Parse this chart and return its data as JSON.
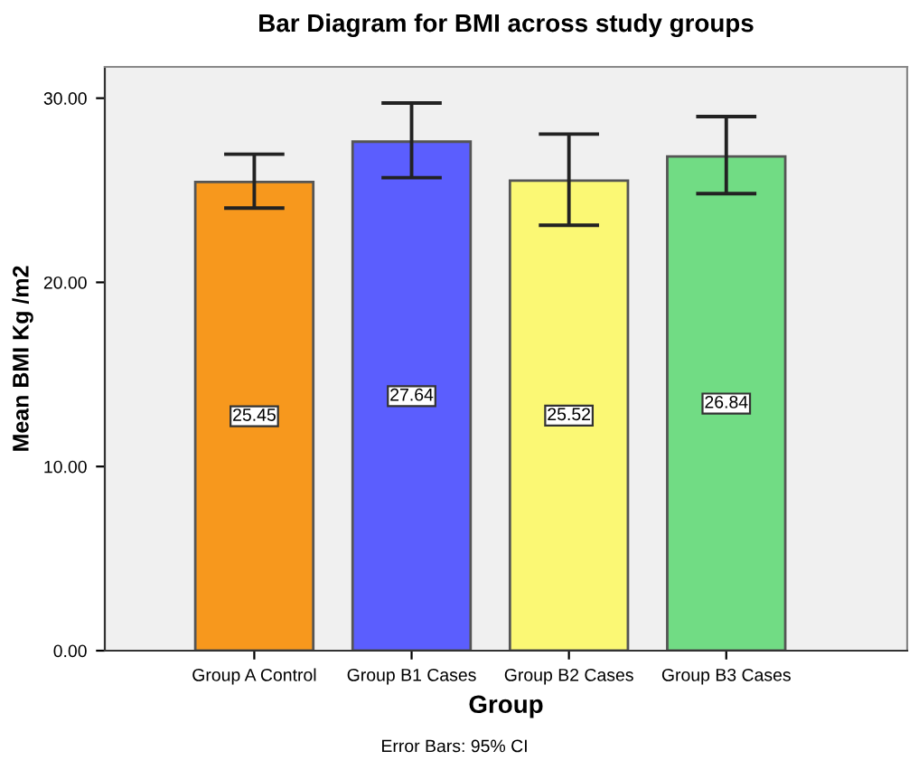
{
  "chart_data": {
    "type": "bar",
    "title": "Bar Diagram for BMI across study groups",
    "xlabel": "Group",
    "ylabel": "Mean BMI Kg /m2",
    "categories": [
      "Group A Control",
      "Group B1 Cases",
      "Group B2 Cases",
      "Group B3 Cases"
    ],
    "values": [
      25.45,
      27.64,
      25.52,
      26.84
    ],
    "colors": [
      "#f7981d",
      "#5b5efe",
      "#fbf874",
      "#71dc84"
    ],
    "errors": [
      [
        24.03,
        26.96
      ],
      [
        25.68,
        29.74
      ],
      [
        23.1,
        28.05
      ],
      [
        24.82,
        29.0
      ]
    ],
    "data_labels": true,
    "ylim": [
      0,
      31.7
    ],
    "yticks": [
      {
        "value": 0,
        "label": "0.00"
      },
      {
        "value": 10,
        "label": "10.00"
      },
      {
        "value": 20,
        "label": "20.00"
      },
      {
        "value": 30,
        "label": "30.00"
      }
    ],
    "grid": false,
    "annotations": [
      "Error Bars: 95% CI"
    ]
  }
}
